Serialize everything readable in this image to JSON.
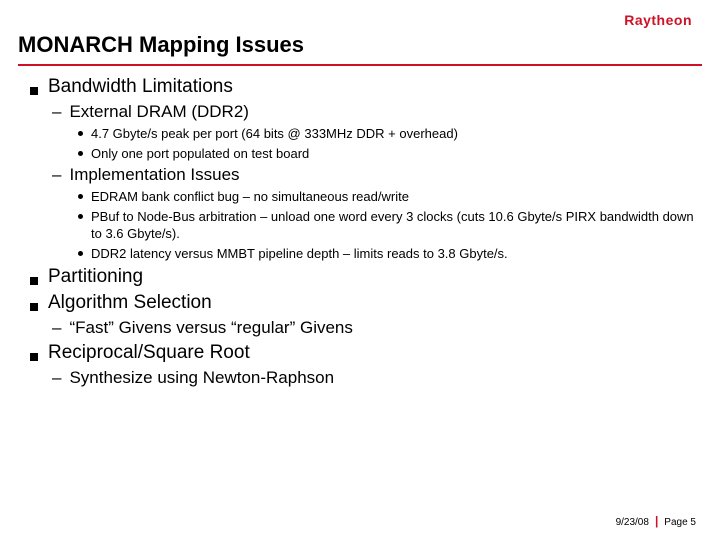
{
  "logo": "Raytheon",
  "title": "MONARCH Mapping Issues",
  "colors": {
    "rule": "#ce1126",
    "logo": "#ce1126",
    "text": "#000000",
    "bg": "#ffffff"
  },
  "fontsizes": {
    "title": 22,
    "lvl1": 19,
    "lvl2": 17,
    "lvl3": 13,
    "footer": 10
  },
  "items": [
    {
      "text": "Bandwidth Limitations",
      "children": [
        {
          "text": "External DRAM (DDR2)",
          "children": [
            {
              "text": "4.7 Gbyte/s peak per port (64 bits @ 333MHz DDR + overhead)"
            },
            {
              "text": "Only one port populated on test board"
            }
          ]
        },
        {
          "text": "Implementation Issues",
          "children": [
            {
              "text": "EDRAM bank conflict bug – no simultaneous read/write"
            },
            {
              "text": "PBuf to Node-Bus arbitration – unload one word every 3 clocks (cuts 10.6 Gbyte/s PIRX bandwidth down to 3.6 Gbyte/s)."
            },
            {
              "text": "DDR2 latency versus MMBT pipeline depth – limits reads to 3.8 Gbyte/s."
            }
          ]
        }
      ]
    },
    {
      "text": "Partitioning"
    },
    {
      "text": "Algorithm Selection",
      "children": [
        {
          "text": "“Fast” Givens versus “regular” Givens"
        }
      ]
    },
    {
      "text": "Reciprocal/Square Root",
      "children": [
        {
          "text": "Synthesize using Newton-Raphson"
        }
      ]
    }
  ],
  "footer": {
    "date": "9/23/08",
    "page": "Page 5"
  }
}
